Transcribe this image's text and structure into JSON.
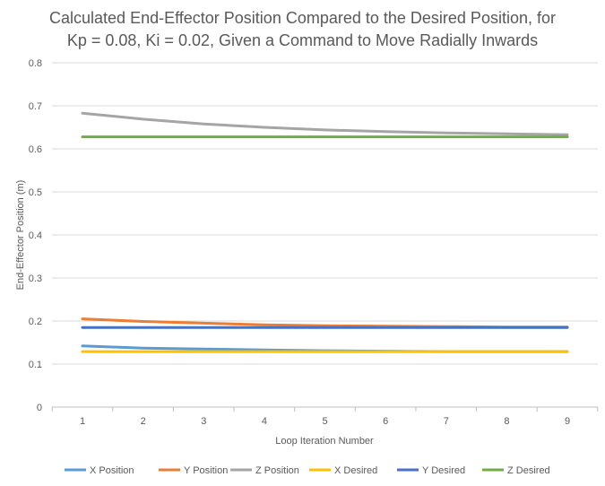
{
  "chart_data": {
    "type": "line",
    "title_line1": "Calculated End-Effector Position Compared to the Desired Position, for",
    "title_line2": "Kp = 0.08, Ki = 0.02, Given a Command to Move Radially Inwards",
    "xlabel": "Loop Iteration Number",
    "ylabel": "End-Effector Position (m)",
    "categories": [
      "1",
      "2",
      "3",
      "4",
      "5",
      "6",
      "7",
      "8",
      "9"
    ],
    "x": [
      1,
      2,
      3,
      4,
      5,
      6,
      7,
      8,
      9
    ],
    "yticks": [
      "0",
      "0.1",
      "0.2",
      "0.3",
      "0.4",
      "0.5",
      "0.6",
      "0.7",
      "0.8"
    ],
    "ylim": [
      0,
      0.8
    ],
    "grid": true,
    "legend_position": "bottom",
    "series": [
      {
        "name": "X Position",
        "color": "#5B9BD5",
        "values": [
          0.142,
          0.137,
          0.135,
          0.133,
          0.131,
          0.13,
          0.129,
          0.129,
          0.129
        ]
      },
      {
        "name": "Y Position",
        "color": "#ED7D31",
        "values": [
          0.205,
          0.199,
          0.195,
          0.191,
          0.189,
          0.188,
          0.187,
          0.186,
          0.186
        ]
      },
      {
        "name": "Z Position",
        "color": "#A5A5A5",
        "values": [
          0.683,
          0.669,
          0.658,
          0.65,
          0.644,
          0.64,
          0.637,
          0.635,
          0.633
        ]
      },
      {
        "name": "X Desired",
        "color": "#FFC000",
        "values": [
          0.129,
          0.129,
          0.129,
          0.129,
          0.129,
          0.129,
          0.129,
          0.129,
          0.129
        ]
      },
      {
        "name": "Y Desired",
        "color": "#4472C4",
        "values": [
          0.185,
          0.185,
          0.185,
          0.185,
          0.185,
          0.185,
          0.185,
          0.185,
          0.185
        ]
      },
      {
        "name": "Z Desired",
        "color": "#70AD47",
        "values": [
          0.628,
          0.628,
          0.628,
          0.628,
          0.628,
          0.628,
          0.628,
          0.628,
          0.628
        ]
      }
    ]
  }
}
